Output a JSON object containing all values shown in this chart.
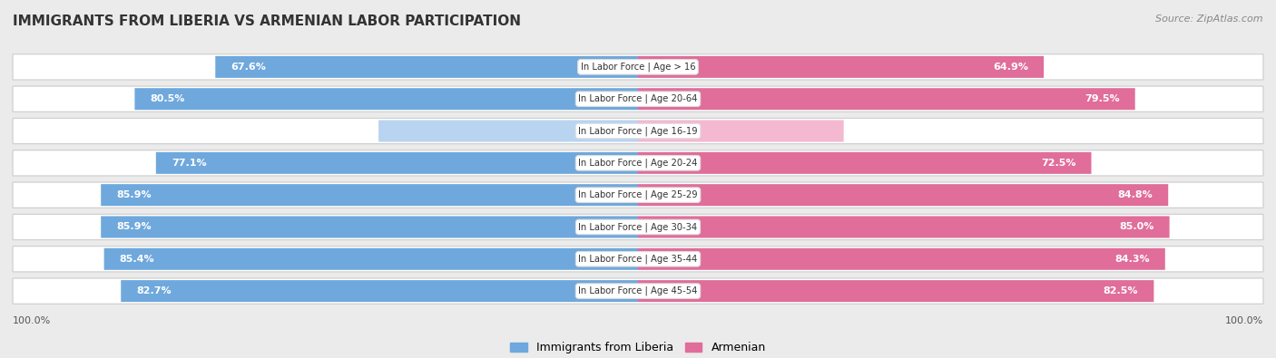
{
  "title": "IMMIGRANTS FROM LIBERIA VS ARMENIAN LABOR PARTICIPATION",
  "source": "Source: ZipAtlas.com",
  "categories": [
    "In Labor Force | Age > 16",
    "In Labor Force | Age 20-64",
    "In Labor Force | Age 16-19",
    "In Labor Force | Age 20-24",
    "In Labor Force | Age 25-29",
    "In Labor Force | Age 30-34",
    "In Labor Force | Age 35-44",
    "In Labor Force | Age 45-54"
  ],
  "liberia_values": [
    67.6,
    80.5,
    41.5,
    77.1,
    85.9,
    85.9,
    85.4,
    82.7
  ],
  "armenian_values": [
    64.9,
    79.5,
    32.9,
    72.5,
    84.8,
    85.0,
    84.3,
    82.5
  ],
  "liberia_color": "#6fa8dc",
  "liberia_light_color": "#b8d4f0",
  "armenian_color": "#e06d9a",
  "armenian_light_color": "#f4b8d1",
  "bg_color": "#ebebeb",
  "max_value": 100.0,
  "legend_liberia": "Immigrants from Liberia",
  "legend_armenian": "Armenian"
}
